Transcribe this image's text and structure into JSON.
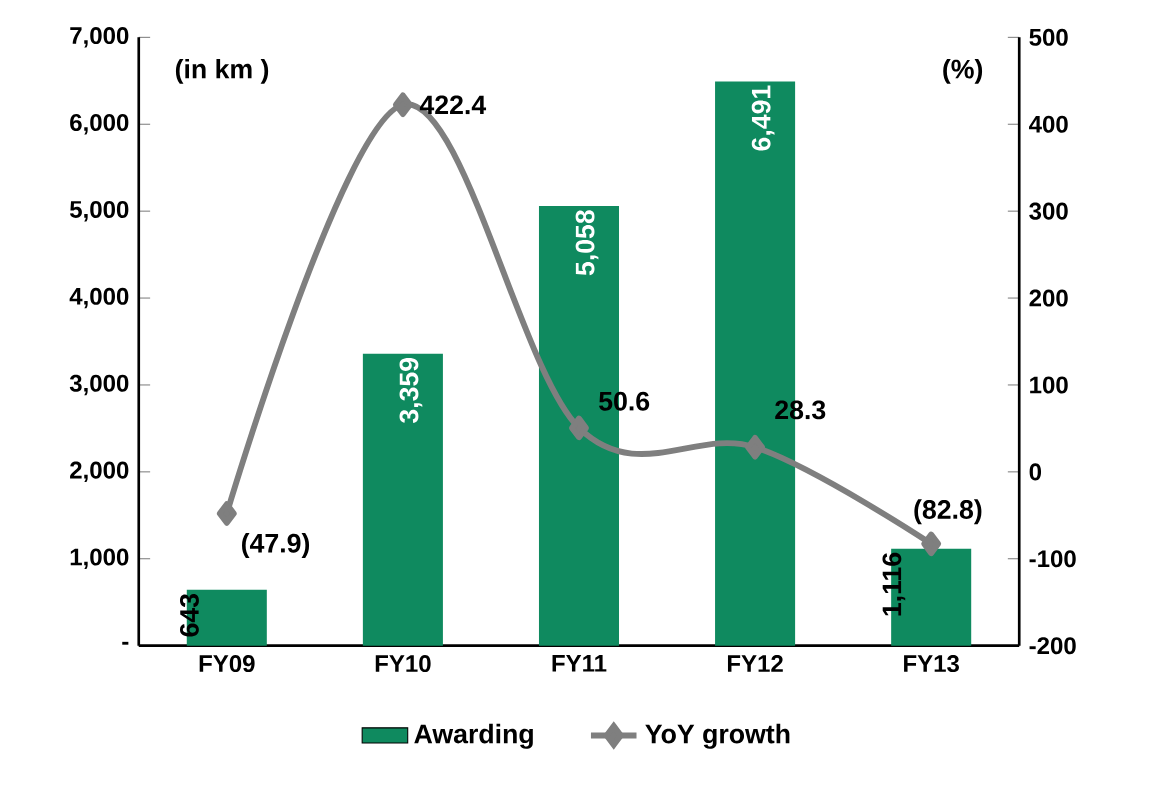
{
  "chart_data": {
    "type": "bar",
    "categories": [
      "FY09",
      "FY10",
      "FY11",
      "FY12",
      "FY13"
    ],
    "series": [
      {
        "name": "Awarding",
        "color": "#0f8a5f",
        "values": [
          643,
          3359,
          5058,
          6491,
          1116
        ],
        "value_labels": [
          "643",
          "3,359",
          "5,058",
          "6,491",
          "1,116"
        ]
      },
      {
        "name": "YoY growth",
        "type": "line",
        "axis": "y2",
        "color": "#7f7f7f",
        "marker": "diamond",
        "line_style": "solid",
        "values": [
          -47.9,
          422.4,
          50.6,
          28.3,
          -82.8
        ],
        "value_labels": [
          "(47.9)",
          "422.4",
          "50.6",
          "28.3",
          "(82.8)"
        ]
      }
    ],
    "ylim": [
      0,
      7000
    ],
    "yticks": [
      {
        "value": 0,
        "label": "-"
      },
      {
        "value": 1000,
        "label": "1,000"
      },
      {
        "value": 2000,
        "label": "2,000"
      },
      {
        "value": 3000,
        "label": "3,000"
      },
      {
        "value": 4000,
        "label": "4,000"
      },
      {
        "value": 5000,
        "label": "5,000"
      },
      {
        "value": 6000,
        "label": "6,000"
      },
      {
        "value": 7000,
        "label": "7,000"
      }
    ],
    "y2lim": [
      -200,
      500
    ],
    "y2ticks": [
      -200,
      -100,
      0,
      100,
      200,
      300,
      400,
      500
    ],
    "annotations": [
      "(in km )",
      "(%)"
    ],
    "legend": "bottom",
    "grid": false
  }
}
